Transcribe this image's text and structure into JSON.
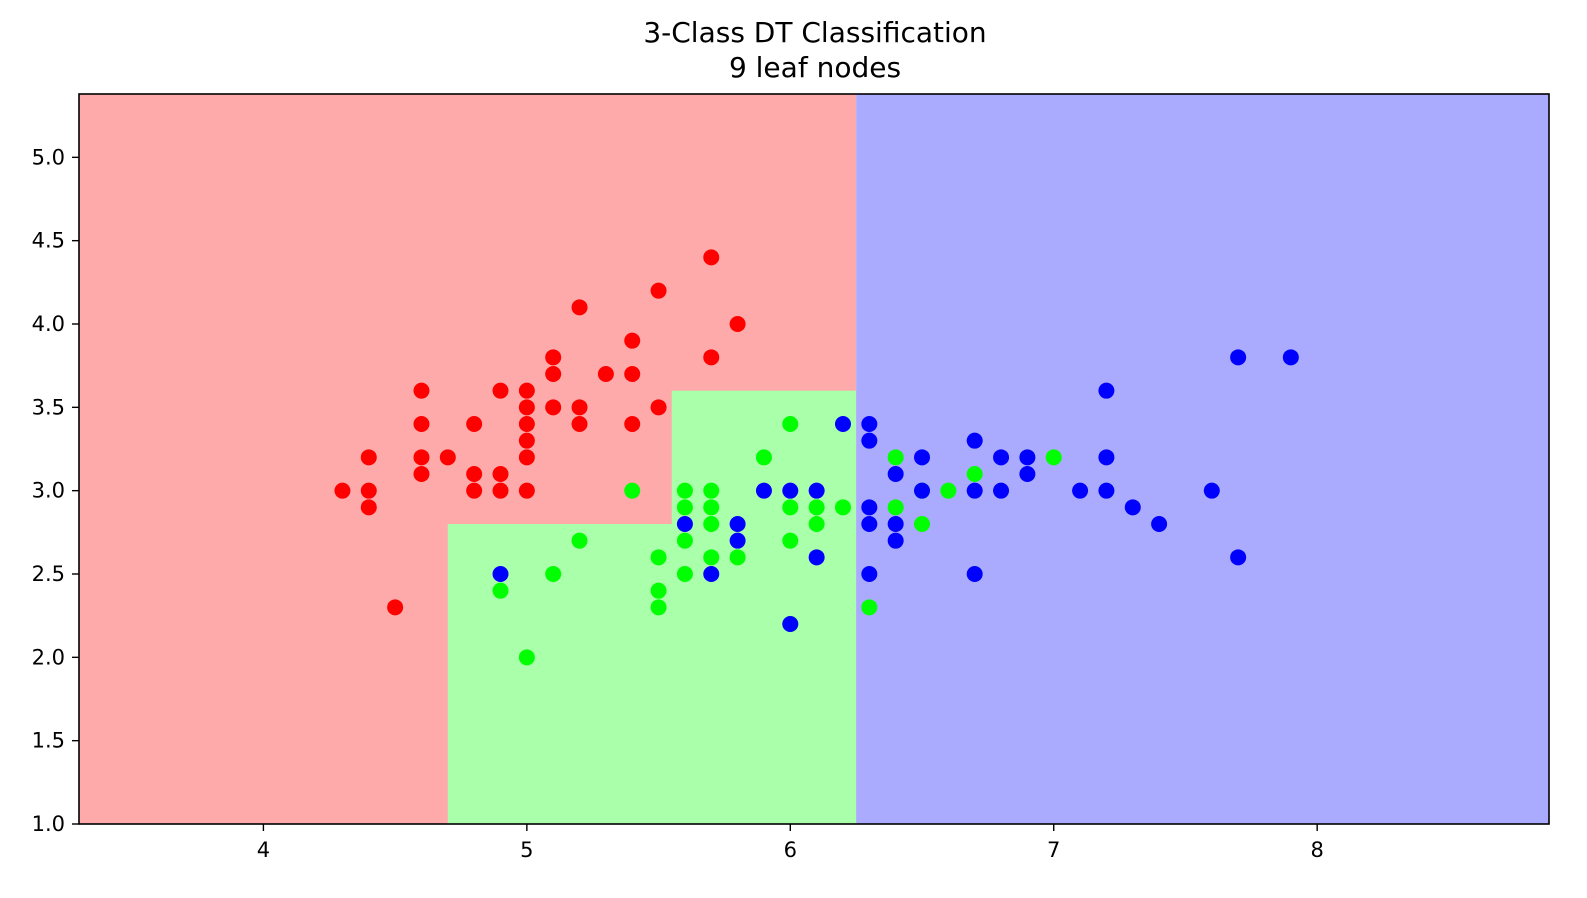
{
  "chart_data": {
    "type": "scatter",
    "title": "3-Class DT Classification",
    "subtitle": "9 leaf nodes",
    "xlabel": "",
    "ylabel": "",
    "xlim": [
      3.3,
      8.88
    ],
    "ylim": [
      1.0,
      5.38
    ],
    "x_ticks": [
      4,
      5,
      6,
      7,
      8
    ],
    "y_ticks": [
      1.0,
      1.5,
      2.0,
      2.5,
      3.0,
      3.5,
      4.0,
      4.5,
      5.0
    ],
    "grid": false,
    "legend": "none",
    "classes": [
      {
        "id": 0,
        "point_color": "#ff0000",
        "region_color": "#ffaaaa"
      },
      {
        "id": 1,
        "point_color": "#00ff00",
        "region_color": "#aaffaa"
      },
      {
        "id": 2,
        "point_color": "#0000ff",
        "region_color": "#aaaaff"
      }
    ],
    "decision_regions": [
      {
        "class": 0,
        "x": [
          3.3,
          6.25
        ],
        "y": [
          1.0,
          5.38
        ]
      },
      {
        "class": 1,
        "x": [
          4.7,
          6.25
        ],
        "y": [
          1.0,
          2.8
        ]
      },
      {
        "class": 1,
        "x": [
          5.55,
          6.25
        ],
        "y": [
          2.8,
          3.6
        ]
      },
      {
        "class": 2,
        "x": [
          6.25,
          8.88
        ],
        "y": [
          1.0,
          5.38
        ]
      }
    ],
    "series": [
      {
        "class": 0,
        "points": [
          [
            5.7,
            4.4
          ],
          [
            5.5,
            4.2
          ],
          [
            5.2,
            4.1
          ],
          [
            5.8,
            4.0
          ],
          [
            5.4,
            3.9
          ],
          [
            5.1,
            3.8
          ],
          [
            5.7,
            3.8
          ],
          [
            5.1,
            3.7
          ],
          [
            5.3,
            3.7
          ],
          [
            5.4,
            3.7
          ],
          [
            4.6,
            3.6
          ],
          [
            4.9,
            3.6
          ],
          [
            5.0,
            3.6
          ],
          [
            5.0,
            3.5
          ],
          [
            5.1,
            3.5
          ],
          [
            5.2,
            3.5
          ],
          [
            5.5,
            3.5
          ],
          [
            4.6,
            3.4
          ],
          [
            4.8,
            3.4
          ],
          [
            5.0,
            3.4
          ],
          [
            5.2,
            3.4
          ],
          [
            5.4,
            3.4
          ],
          [
            5.0,
            3.3
          ],
          [
            4.4,
            3.2
          ],
          [
            4.6,
            3.2
          ],
          [
            4.7,
            3.2
          ],
          [
            5.0,
            3.2
          ],
          [
            4.6,
            3.1
          ],
          [
            4.8,
            3.1
          ],
          [
            4.9,
            3.1
          ],
          [
            4.3,
            3.0
          ],
          [
            4.4,
            3.0
          ],
          [
            4.8,
            3.0
          ],
          [
            4.9,
            3.0
          ],
          [
            5.0,
            3.0
          ],
          [
            4.4,
            2.9
          ],
          [
            4.5,
            2.3
          ]
        ]
      },
      {
        "class": 1,
        "points": [
          [
            6.0,
            3.4
          ],
          [
            5.9,
            3.2
          ],
          [
            6.4,
            3.2
          ],
          [
            7.0,
            3.2
          ],
          [
            6.7,
            3.1
          ],
          [
            5.4,
            3.0
          ],
          [
            5.6,
            3.0
          ],
          [
            5.7,
            3.0
          ],
          [
            6.5,
            3.0
          ],
          [
            6.6,
            3.0
          ],
          [
            5.6,
            2.9
          ],
          [
            5.7,
            2.9
          ],
          [
            6.0,
            2.9
          ],
          [
            6.1,
            2.9
          ],
          [
            6.2,
            2.9
          ],
          [
            6.4,
            2.9
          ],
          [
            5.7,
            2.8
          ],
          [
            6.1,
            2.8
          ],
          [
            6.5,
            2.8
          ],
          [
            5.6,
            2.7
          ],
          [
            5.2,
            2.7
          ],
          [
            6.0,
            2.7
          ],
          [
            5.5,
            2.6
          ],
          [
            5.7,
            2.6
          ],
          [
            5.8,
            2.6
          ],
          [
            5.1,
            2.5
          ],
          [
            5.6,
            2.5
          ],
          [
            4.9,
            2.4
          ],
          [
            5.5,
            2.4
          ],
          [
            5.5,
            2.3
          ],
          [
            6.3,
            2.3
          ],
          [
            6.0,
            2.2
          ],
          [
            5.0,
            2.0
          ]
        ]
      },
      {
        "class": 2,
        "points": [
          [
            7.7,
            3.8
          ],
          [
            7.9,
            3.8
          ],
          [
            7.2,
            3.6
          ],
          [
            6.2,
            3.4
          ],
          [
            6.3,
            3.4
          ],
          [
            6.3,
            3.3
          ],
          [
            6.7,
            3.3
          ],
          [
            6.5,
            3.2
          ],
          [
            6.8,
            3.2
          ],
          [
            6.9,
            3.2
          ],
          [
            7.2,
            3.2
          ],
          [
            6.4,
            3.1
          ],
          [
            6.9,
            3.1
          ],
          [
            5.9,
            3.0
          ],
          [
            6.0,
            3.0
          ],
          [
            6.1,
            3.0
          ],
          [
            6.5,
            3.0
          ],
          [
            6.7,
            3.0
          ],
          [
            6.8,
            3.0
          ],
          [
            7.1,
            3.0
          ],
          [
            7.2,
            3.0
          ],
          [
            7.6,
            3.0
          ],
          [
            6.3,
            2.9
          ],
          [
            7.3,
            2.9
          ],
          [
            5.6,
            2.8
          ],
          [
            5.8,
            2.8
          ],
          [
            6.3,
            2.8
          ],
          [
            6.4,
            2.8
          ],
          [
            7.4,
            2.8
          ],
          [
            5.8,
            2.7
          ],
          [
            6.4,
            2.7
          ],
          [
            6.1,
            2.6
          ],
          [
            7.7,
            2.6
          ],
          [
            4.9,
            2.5
          ],
          [
            5.7,
            2.5
          ],
          [
            6.3,
            2.5
          ],
          [
            6.7,
            2.5
          ],
          [
            6.0,
            2.2
          ]
        ]
      }
    ]
  }
}
